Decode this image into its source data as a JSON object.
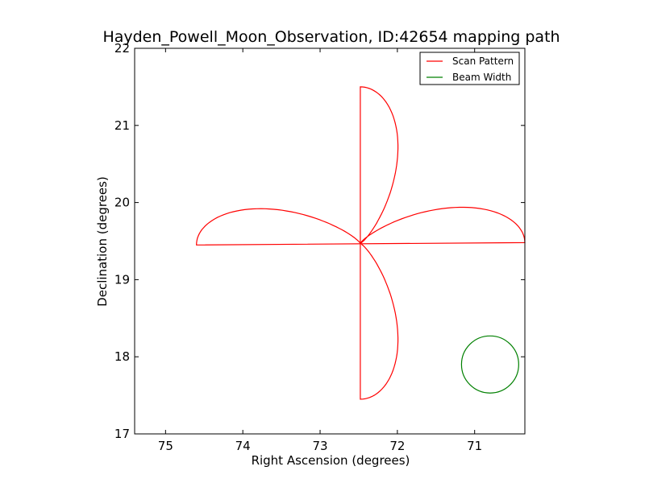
{
  "chart_data": {
    "type": "line",
    "title": "Hayden_Powell_Moon_Observation, ID:42654 mapping path",
    "xlabel": "Right Ascension (degrees)",
    "ylabel": "Declination (degrees)",
    "xlim": [
      75.4,
      70.35
    ],
    "ylim": [
      17,
      22
    ],
    "x_reversed": true,
    "xticks": [
      75,
      74,
      73,
      72,
      71
    ],
    "yticks": [
      17,
      18,
      19,
      20,
      21,
      22
    ],
    "grid": false,
    "legend_position": "top-right",
    "series": [
      {
        "name": "Scan Pattern",
        "color": "#ff0000",
        "shape": "four-petal rose scan",
        "center": [
          72.48,
          19.47
        ],
        "petal_tips": [
          [
            72.48,
            21.5
          ],
          [
            72.48,
            17.45
          ],
          [
            74.6,
            19.45
          ],
          [
            70.35,
            19.48
          ]
        ],
        "petal_half_width": {
          "vertical_petals_ra": 0.58,
          "horizontal_petals_dec": 0.55
        }
      },
      {
        "name": "Beam Width",
        "color": "#008000",
        "shape": "circle",
        "center": [
          70.8,
          17.9
        ],
        "radius": 0.37
      }
    ]
  }
}
